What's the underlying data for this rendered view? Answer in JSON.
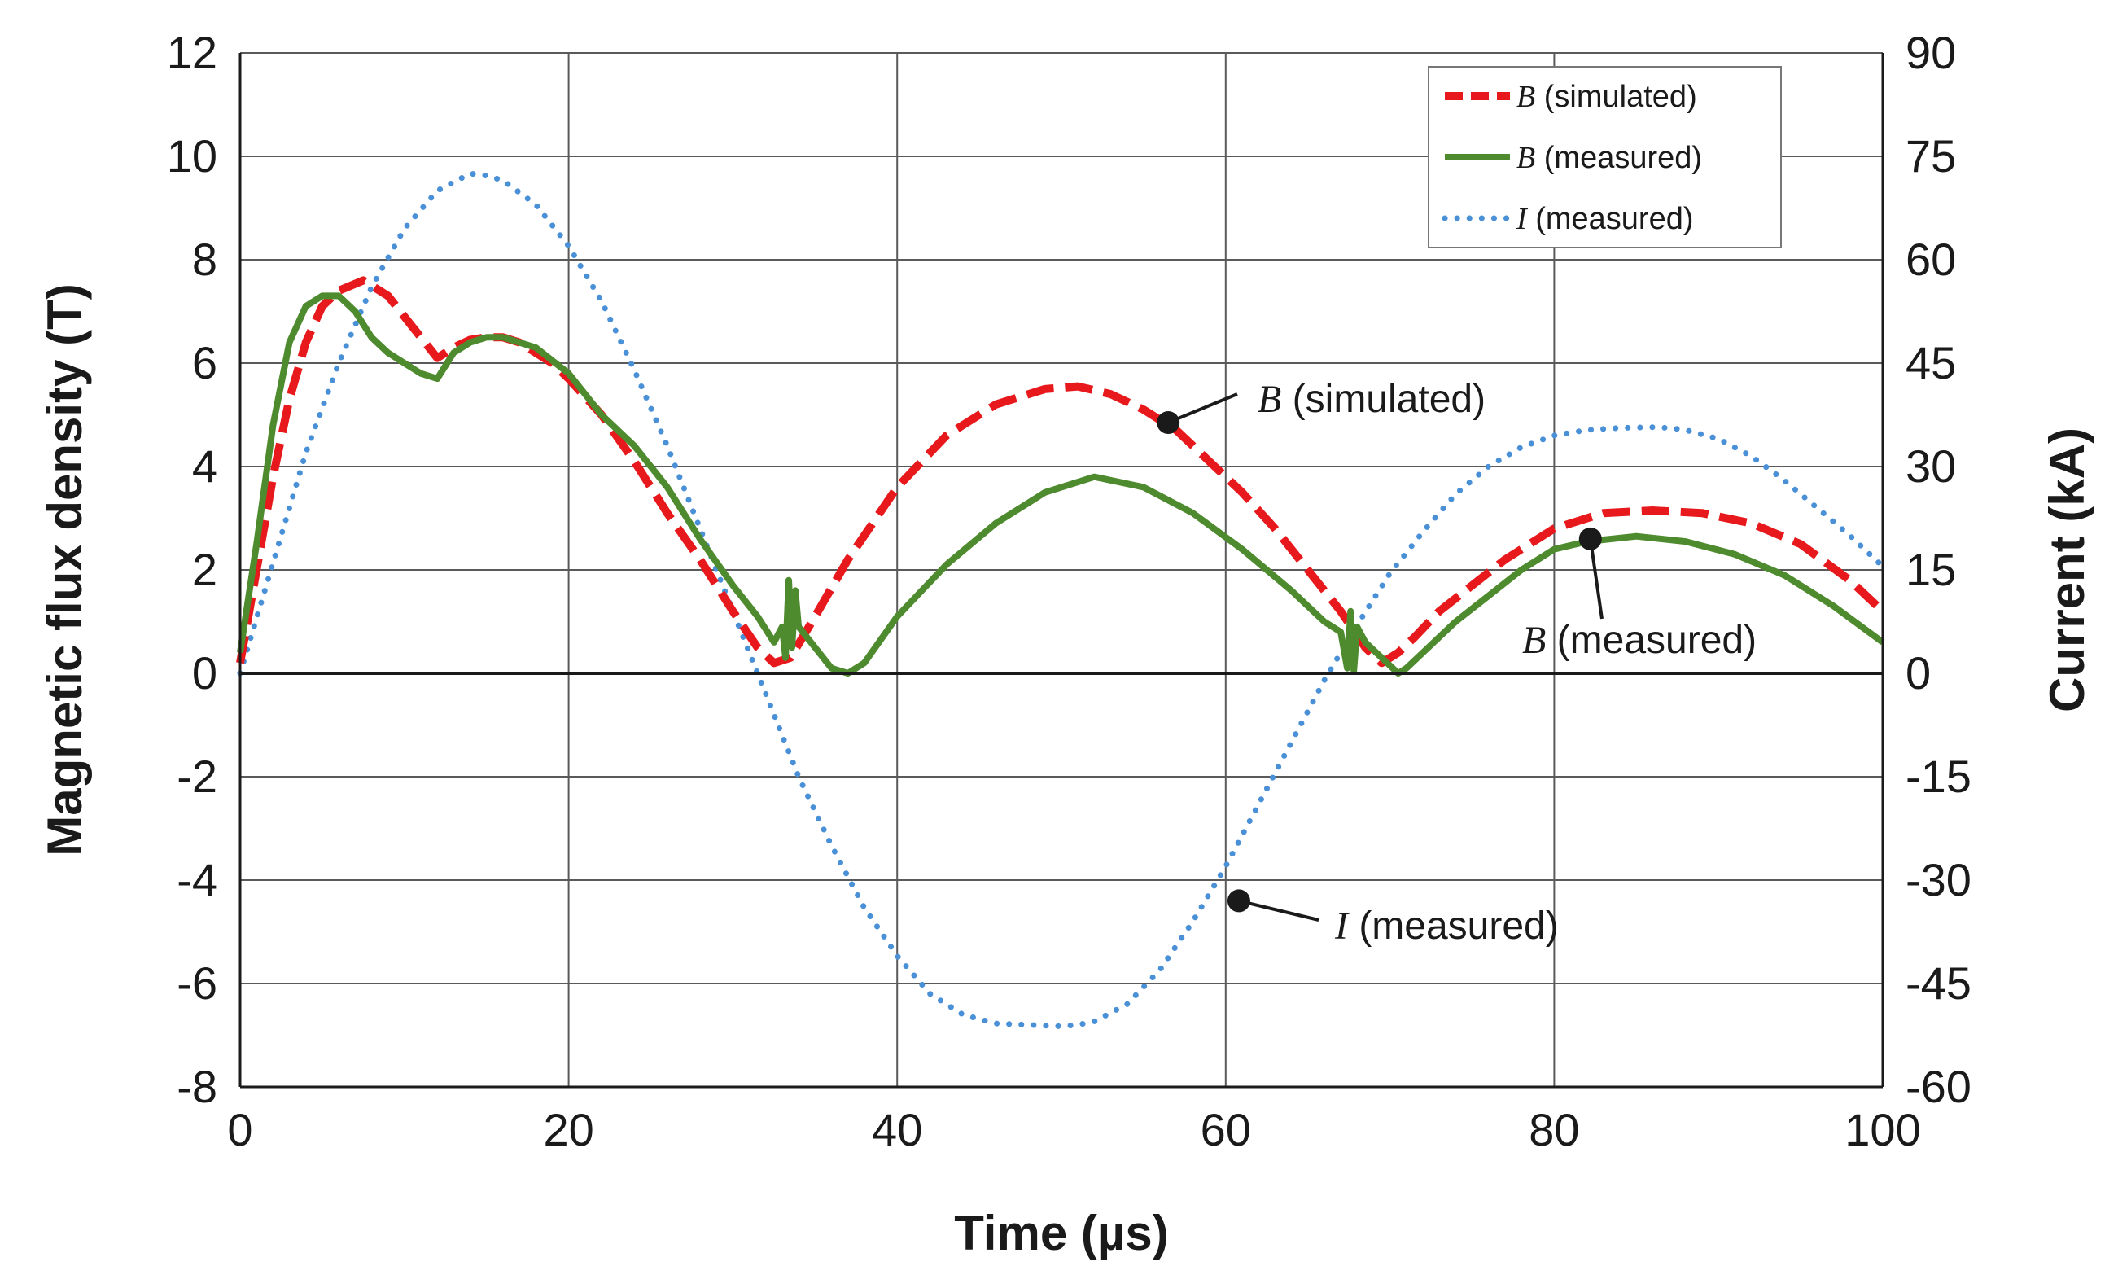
{
  "chart_data": {
    "type": "line",
    "title": "",
    "xlabel": "Time (µs)",
    "ylabel": "Magnetic flux density (T)",
    "y2label": "Current (kA)",
    "xlim": [
      0,
      100
    ],
    "ylim": [
      -8,
      12
    ],
    "y2lim": [
      -60,
      90
    ],
    "xticks": [
      "0",
      "20",
      "40",
      "60",
      "80",
      "100"
    ],
    "yticks": [
      "-8",
      "-6",
      "-4",
      "-2",
      "0",
      "2",
      "4",
      "6",
      "8",
      "10",
      "12"
    ],
    "y2ticks": [
      "-60",
      "-45",
      "-30",
      "-15",
      "0",
      "15",
      "30",
      "45",
      "60",
      "75",
      "90"
    ],
    "xtick_values": [
      0,
      20,
      40,
      60,
      80,
      100
    ],
    "ytick_values": [
      -8,
      -6,
      -4,
      -2,
      0,
      2,
      4,
      6,
      8,
      10,
      12
    ],
    "grid": true,
    "legend_position": "top-right",
    "series": [
      {
        "name": "B (simulated)",
        "symbol": "B",
        "suffix": "(simulated)",
        "axis": "left",
        "color": "#e8191c",
        "style": "dashed",
        "x": [
          0,
          1,
          2,
          3,
          4,
          5,
          6,
          7.5,
          9,
          10.5,
          12,
          13,
          14,
          15,
          16,
          17,
          18,
          19,
          20,
          22,
          24,
          26,
          28,
          30,
          31.5,
          32.5,
          33.5,
          35,
          37,
          40,
          43,
          46,
          49,
          51,
          53,
          55,
          57,
          59,
          61,
          63,
          65,
          67,
          68.5,
          69.5,
          70.5,
          71.5,
          73,
          75,
          77,
          80,
          83,
          86,
          89,
          92,
          95,
          98,
          100
        ],
        "y": [
          0.2,
          2.0,
          3.8,
          5.3,
          6.4,
          7.1,
          7.4,
          7.6,
          7.3,
          6.7,
          6.1,
          6.3,
          6.45,
          6.5,
          6.5,
          6.4,
          6.2,
          6.0,
          5.7,
          5.0,
          4.1,
          3.1,
          2.2,
          1.2,
          0.5,
          0.2,
          0.3,
          1.1,
          2.2,
          3.6,
          4.6,
          5.2,
          5.5,
          5.55,
          5.4,
          5.1,
          4.7,
          4.1,
          3.5,
          2.8,
          2.0,
          1.2,
          0.5,
          0.2,
          0.4,
          0.7,
          1.2,
          1.7,
          2.2,
          2.8,
          3.1,
          3.15,
          3.1,
          2.9,
          2.5,
          1.8,
          1.2
        ]
      },
      {
        "name": "B (measured)",
        "symbol": "B",
        "suffix": "(measured)",
        "axis": "left",
        "color": "#4e8a2e",
        "style": "solid",
        "x": [
          0,
          1,
          2,
          3,
          4,
          5,
          6,
          7,
          8,
          9,
          10,
          11,
          12,
          13,
          14,
          15,
          16,
          17,
          18,
          20,
          22,
          24,
          26,
          28,
          30,
          31.5,
          32.5,
          33,
          33.2,
          33.4,
          33.6,
          33.8,
          34,
          35,
          36,
          37,
          38,
          40,
          43,
          46,
          49,
          52,
          55,
          58,
          61,
          64,
          66,
          67,
          67.4,
          67.6,
          67.8,
          68,
          68.5,
          69.5,
          70.5,
          71,
          72,
          74,
          76,
          78,
          80,
          82,
          85,
          88,
          91,
          94,
          97,
          100
        ],
        "y": [
          0.4,
          2.5,
          4.8,
          6.4,
          7.1,
          7.3,
          7.3,
          7.0,
          6.5,
          6.2,
          6.0,
          5.8,
          5.7,
          6.2,
          6.4,
          6.5,
          6.5,
          6.4,
          6.3,
          5.8,
          5.0,
          4.4,
          3.6,
          2.6,
          1.7,
          1.1,
          0.6,
          0.9,
          0.3,
          1.8,
          0.5,
          1.6,
          0.9,
          0.5,
          0.1,
          0.0,
          0.2,
          1.1,
          2.1,
          2.9,
          3.5,
          3.8,
          3.6,
          3.1,
          2.4,
          1.6,
          1.0,
          0.8,
          0.1,
          1.2,
          0.05,
          0.9,
          0.6,
          0.3,
          0.0,
          0.1,
          0.4,
          1.0,
          1.5,
          2.0,
          2.4,
          2.55,
          2.65,
          2.55,
          2.3,
          1.9,
          1.3,
          0.6
        ]
      },
      {
        "name": "I (measured)",
        "symbol": "I",
        "suffix": "(measured)",
        "axis": "right",
        "color": "#4a90d6",
        "style": "dotted",
        "x": [
          0,
          2,
          4,
          6,
          8,
          10,
          12,
          14,
          15,
          16,
          18,
          20,
          22,
          24,
          26,
          28,
          30,
          32,
          34,
          36,
          38,
          40,
          42,
          44,
          46,
          48,
          50,
          51,
          52,
          54,
          56,
          58,
          60,
          62,
          64,
          66,
          68,
          70,
          72,
          74,
          76,
          78,
          80,
          82,
          84,
          86,
          87,
          88,
          90,
          92,
          94,
          96,
          98,
          100
        ],
        "y": [
          0,
          16,
          32,
          45,
          56,
          64.5,
          70,
          72.5,
          72.2,
          71.5,
          68,
          62,
          54,
          44,
          33,
          21,
          9,
          -3,
          -15,
          -25,
          -34,
          -41,
          -46.5,
          -49.5,
          -50.8,
          -51,
          -51.2,
          -51,
          -50.5,
          -48,
          -43,
          -36,
          -28,
          -19,
          -10,
          -1,
          7,
          14.5,
          20.5,
          26,
          30,
          32.8,
          34.5,
          35.3,
          35.6,
          35.7,
          35.6,
          35.3,
          34,
          31.5,
          28,
          24,
          20,
          15.5
        ]
      }
    ],
    "annotations": [
      {
        "symbol": "B",
        "text": "(simulated)",
        "point_x": 56.5,
        "point_y": 4.85
      },
      {
        "symbol": "B",
        "text": "(measured)",
        "point_x": 82.2,
        "point_y": 2.6
      },
      {
        "symbol": "I",
        "text": "(measured)",
        "point_x": 60.8,
        "point_y": -4.4
      }
    ]
  }
}
